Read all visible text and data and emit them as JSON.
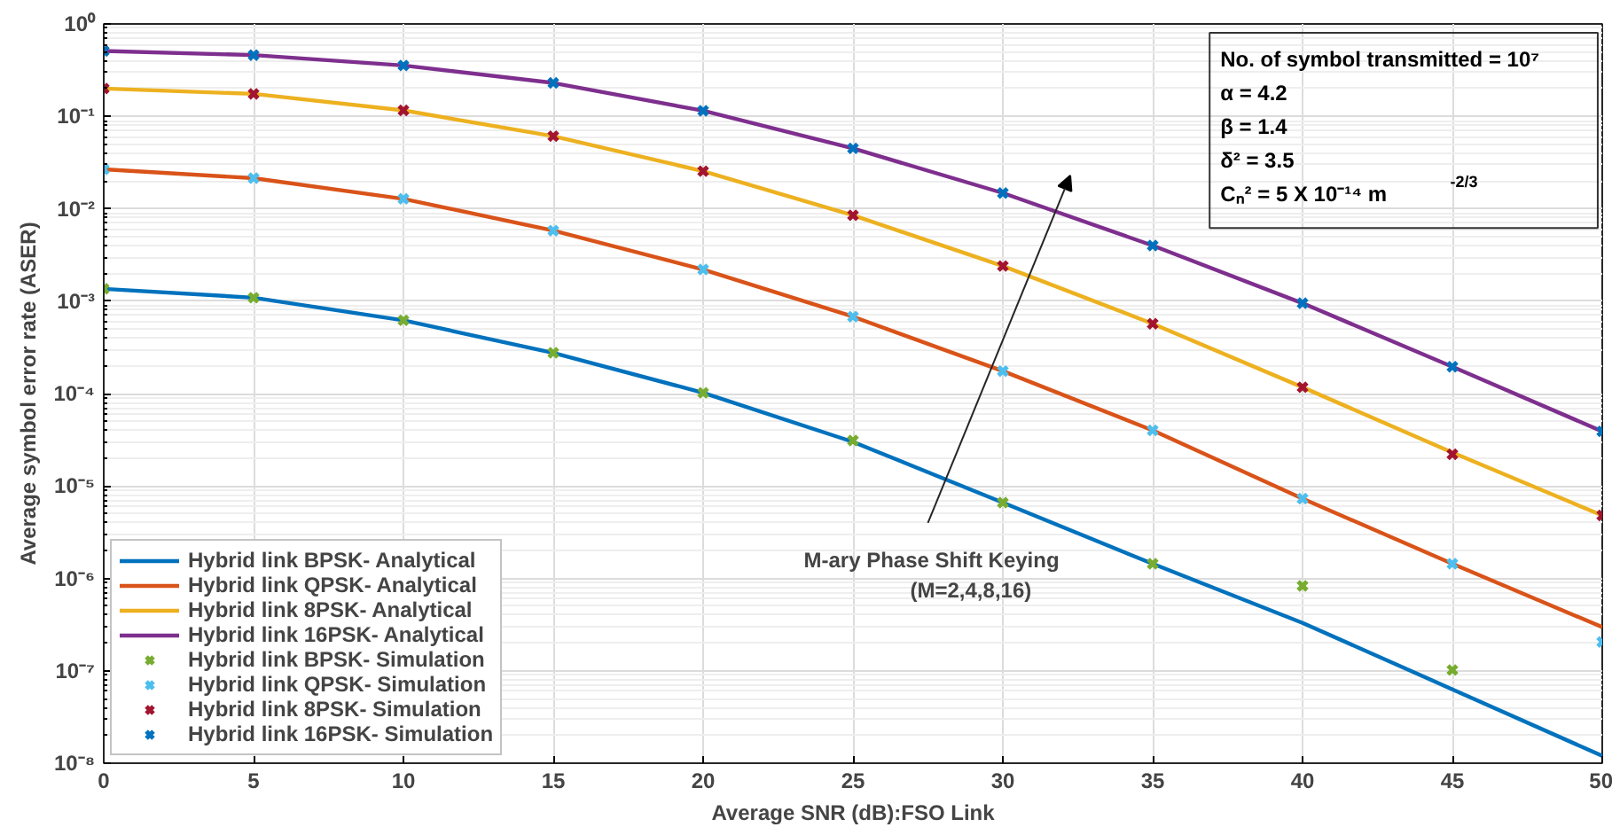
{
  "chart_data": {
    "type": "line",
    "xlabel": "Average SNR (dB):FSO Link",
    "ylabel": "Average symbol error rate (ASER)",
    "x": [
      0,
      5,
      10,
      15,
      20,
      25,
      30,
      35,
      40,
      45,
      50
    ],
    "xlim": [
      0,
      50
    ],
    "xticks": [
      0,
      5,
      10,
      15,
      20,
      25,
      30,
      35,
      40,
      45,
      50
    ],
    "ylim": [
      1e-08,
      1
    ],
    "log": "y",
    "yticks": [
      {
        "value": 1e-08,
        "label": "10⁻⁸"
      },
      {
        "value": 1e-07,
        "label": "10⁻⁷"
      },
      {
        "value": 1e-06,
        "label": "10⁻⁶"
      },
      {
        "value": 1e-05,
        "label": "10⁻⁵"
      },
      {
        "value": 0.0001,
        "label": "10⁻⁴"
      },
      {
        "value": 0.001,
        "label": "10⁻³"
      },
      {
        "value": 0.01,
        "label": "10⁻²"
      },
      {
        "value": 0.1,
        "label": "10⁻¹"
      },
      {
        "value": 1,
        "label": "10⁰"
      }
    ],
    "grid": true,
    "legend": "bottom left",
    "series": [
      {
        "name": "Hybrid link BPSK- Analytical",
        "color": "#0072bd",
        "values": [
          0.00136,
          0.00109,
          0.00062,
          0.000276,
          0.000102,
          3e-05,
          6.6e-06,
          1.44e-06,
          3.3e-07,
          6.3e-08,
          1.2e-08
        ]
      },
      {
        "name": "Hybrid link QPSK- Analytical",
        "color": "#d95319",
        "values": [
          0.0267,
          0.0214,
          0.0128,
          0.0058,
          0.0022,
          0.00068,
          0.000175,
          4e-05,
          7.3e-06,
          1.44e-06,
          2.97e-07
        ]
      },
      {
        "name": "Hybrid link 8PSK- Analytical",
        "color": "#edb120",
        "values": [
          0.2,
          0.175,
          0.116,
          0.061,
          0.0255,
          0.0085,
          0.0024,
          0.00057,
          0.000117,
          2.3e-05,
          4.8e-06
        ]
      },
      {
        "name": "Hybrid link 16PSK- Analytical",
        "color": "#7e2f8e",
        "values": [
          0.51,
          0.46,
          0.355,
          0.23,
          0.115,
          0.045,
          0.0148,
          0.004,
          0.00095,
          0.000195,
          3.9e-05
        ]
      },
      {
        "name": "Hybrid link BPSK- Simulation",
        "type": "scatter",
        "marker": "cross",
        "color": "#77ac30",
        "values": [
          0.00136,
          0.00109,
          0.00062,
          0.000276,
          0.000102,
          3.1e-05,
          6.6e-06,
          1.44e-06,
          8.3e-07,
          1.02e-07,
          null
        ]
      },
      {
        "name": "Hybrid link QPSK- Simulation",
        "type": "scatter",
        "marker": "cross",
        "color": "#4dbeee",
        "values": [
          0.0267,
          0.0214,
          0.0128,
          0.0058,
          0.0022,
          0.00068,
          0.000175,
          4e-05,
          7.3e-06,
          1.44e-06,
          2.05e-07
        ]
      },
      {
        "name": "Hybrid link 8PSK- Simulation",
        "type": "scatter",
        "marker": "cross",
        "color": "#a2142f",
        "values": [
          0.2,
          0.175,
          0.116,
          0.061,
          0.0255,
          0.0085,
          0.0024,
          0.00057,
          0.000117,
          2.2e-05,
          4.8e-06
        ]
      },
      {
        "name": "Hybrid link 16PSK- Simulation",
        "type": "scatter",
        "marker": "cross",
        "color": "#0072bd",
        "values": [
          0.51,
          0.46,
          0.355,
          0.23,
          0.115,
          0.045,
          0.0148,
          0.004,
          0.00095,
          0.000195,
          3.9e-05
        ]
      }
    ],
    "annotations": [
      "No. of symbol transmitted = 10⁷\nα = 4.2\nβ = 1.4\nδ² = 3.5\nCₙ² = 5 X 10⁻¹⁴  m$^{-2/3}$",
      "M-ary Phase Shift Keying\n(M=2,4,8,16)"
    ]
  }
}
